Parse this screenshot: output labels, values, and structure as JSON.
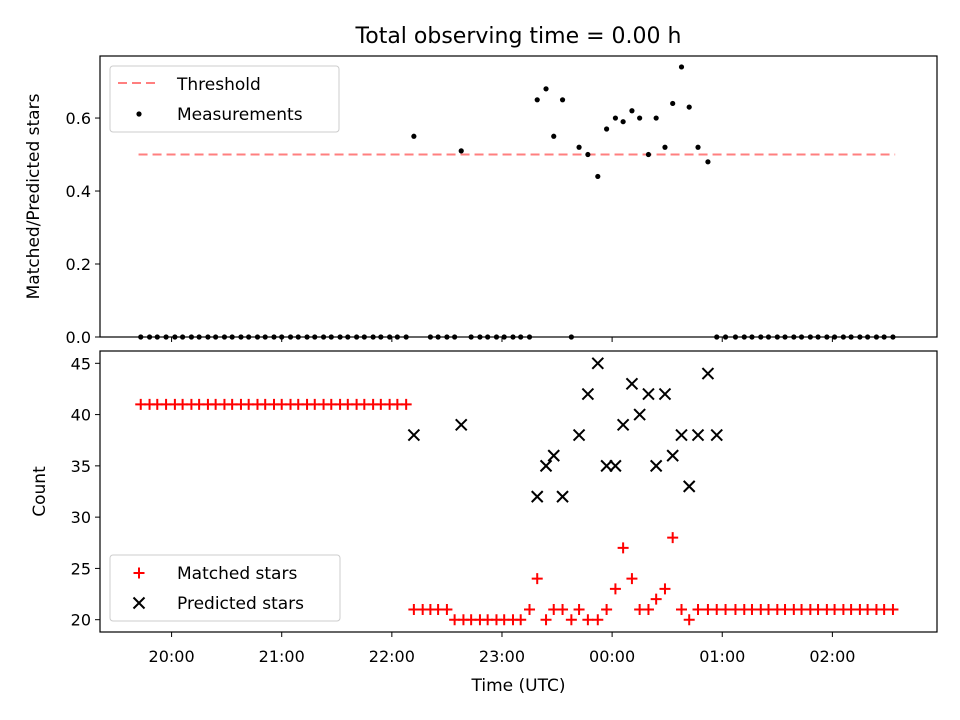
{
  "chart_data": [
    {
      "type": "scatter",
      "title": "Total observing time = 0.00 h",
      "ylabel": "Matched/Predicted stars",
      "ylim": [
        0,
        0.77
      ],
      "yticks": [
        "0.0",
        "0.2",
        "0.4",
        "0.6"
      ],
      "xlim": [
        -0.65,
        6.95
      ],
      "legend_position": "top-left",
      "threshold": {
        "name": "Threshold",
        "value": 0.5,
        "x_range": [
          -0.3,
          6.57
        ],
        "color": "#ff7f7f"
      },
      "measurements": {
        "name": "Measurements",
        "color": "#000000",
        "x": [
          -0.28,
          -0.2,
          -0.13,
          -0.05,
          0.03,
          0.1,
          0.18,
          0.25,
          0.33,
          0.4,
          0.48,
          0.55,
          0.63,
          0.7,
          0.78,
          0.85,
          0.93,
          1.0,
          1.08,
          1.15,
          1.23,
          1.3,
          1.38,
          1.45,
          1.53,
          1.6,
          1.68,
          1.75,
          1.83,
          1.9,
          1.98,
          2.05,
          2.13,
          2.2,
          2.35,
          2.42,
          2.5,
          2.57,
          2.63,
          2.72,
          2.8,
          2.87,
          2.95,
          3.02,
          3.1,
          3.17,
          3.25,
          3.32,
          3.4,
          3.47,
          3.55,
          3.63,
          3.7,
          3.78,
          3.87,
          3.95,
          4.03,
          4.1,
          4.18,
          4.25,
          4.33,
          4.4,
          4.48,
          4.55,
          4.63,
          4.7,
          4.78,
          4.87,
          4.95,
          5.03,
          5.12,
          5.2,
          5.27,
          5.35,
          5.42,
          5.5,
          5.57,
          5.65,
          5.72,
          5.8,
          5.87,
          5.95,
          6.02,
          6.1,
          6.17,
          6.25,
          6.32,
          6.4,
          6.47,
          6.55
        ],
        "y": [
          0,
          0,
          0,
          0,
          0,
          0,
          0,
          0,
          0,
          0,
          0,
          0,
          0,
          0,
          0,
          0,
          0,
          0,
          0,
          0,
          0,
          0,
          0,
          0,
          0,
          0,
          0,
          0,
          0,
          0,
          0,
          0,
          0,
          0.55,
          0,
          0,
          0,
          0,
          0.51,
          0,
          0,
          0,
          0,
          0,
          0,
          0,
          0,
          0.65,
          0.68,
          0.55,
          0.65,
          0,
          0.52,
          0.5,
          0.44,
          0.57,
          0.6,
          0.59,
          0.62,
          0.6,
          0.5,
          0.6,
          0.52,
          0.64,
          0.74,
          0.63,
          0.52,
          0.48,
          0,
          0,
          0,
          0,
          0,
          0,
          0,
          0,
          0,
          0,
          0,
          0,
          0,
          0,
          0,
          0,
          0,
          0,
          0,
          0,
          0,
          0
        ]
      }
    },
    {
      "type": "scatter",
      "xlabel": "Time (UTC)",
      "ylabel": "Count",
      "ylim": [
        18.8,
        46.2
      ],
      "yticks": [
        "20",
        "25",
        "30",
        "35",
        "40",
        "45"
      ],
      "xlim": [
        -0.65,
        6.95
      ],
      "xticks": [
        "20:00",
        "21:00",
        "22:00",
        "23:00",
        "00:00",
        "01:00",
        "02:00"
      ],
      "legend_position": "bottom-left",
      "series": [
        {
          "name": "Matched stars",
          "marker": "plus",
          "color": "#ff0000",
          "x": [
            -0.28,
            -0.2,
            -0.13,
            -0.05,
            0.03,
            0.1,
            0.18,
            0.25,
            0.33,
            0.4,
            0.48,
            0.55,
            0.63,
            0.7,
            0.78,
            0.85,
            0.93,
            1.0,
            1.08,
            1.15,
            1.23,
            1.3,
            1.38,
            1.45,
            1.53,
            1.6,
            1.68,
            1.75,
            1.83,
            1.9,
            1.98,
            2.05,
            2.13,
            2.2,
            2.28,
            2.35,
            2.42,
            2.5,
            2.57,
            2.65,
            2.72,
            2.8,
            2.87,
            2.95,
            3.02,
            3.1,
            3.17,
            3.25,
            3.32,
            3.4,
            3.47,
            3.55,
            3.63,
            3.7,
            3.78,
            3.87,
            3.95,
            4.03,
            4.1,
            4.18,
            4.25,
            4.33,
            4.4,
            4.48,
            4.55,
            4.63,
            4.7,
            4.78,
            4.87,
            4.95,
            5.03,
            5.12,
            5.2,
            5.27,
            5.35,
            5.42,
            5.5,
            5.57,
            5.65,
            5.72,
            5.8,
            5.87,
            5.95,
            6.02,
            6.1,
            6.17,
            6.25,
            6.32,
            6.4,
            6.47,
            6.55
          ],
          "y": [
            41,
            41,
            41,
            41,
            41,
            41,
            41,
            41,
            41,
            41,
            41,
            41,
            41,
            41,
            41,
            41,
            41,
            41,
            41,
            41,
            41,
            41,
            41,
            41,
            41,
            41,
            41,
            41,
            41,
            41,
            41,
            41,
            41,
            21,
            21,
            21,
            21,
            21,
            20,
            20,
            20,
            20,
            20,
            20,
            20,
            20,
            20,
            21,
            24,
            20,
            21,
            21,
            20,
            21,
            20,
            20,
            21,
            23,
            27,
            24,
            21,
            21,
            22,
            23,
            28,
            21,
            20,
            21,
            21,
            21,
            21,
            21,
            21,
            21,
            21,
            21,
            21,
            21,
            21,
            21,
            21,
            21,
            21,
            21,
            21,
            21,
            21,
            21,
            21,
            21,
            21
          ]
        },
        {
          "name": "Predicted stars",
          "marker": "x",
          "color": "#000000",
          "x": [
            2.2,
            2.63,
            3.32,
            3.4,
            3.47,
            3.55,
            3.7,
            3.78,
            3.87,
            3.95,
            4.03,
            4.1,
            4.18,
            4.25,
            4.33,
            4.4,
            4.48,
            4.55,
            4.63,
            4.7,
            4.78,
            4.87,
            4.95
          ],
          "y": [
            38,
            39,
            32,
            35,
            36,
            32,
            38,
            42,
            45,
            35,
            35,
            39,
            43,
            40,
            42,
            35,
            42,
            36,
            38,
            33,
            38,
            44,
            38
          ]
        }
      ]
    }
  ]
}
